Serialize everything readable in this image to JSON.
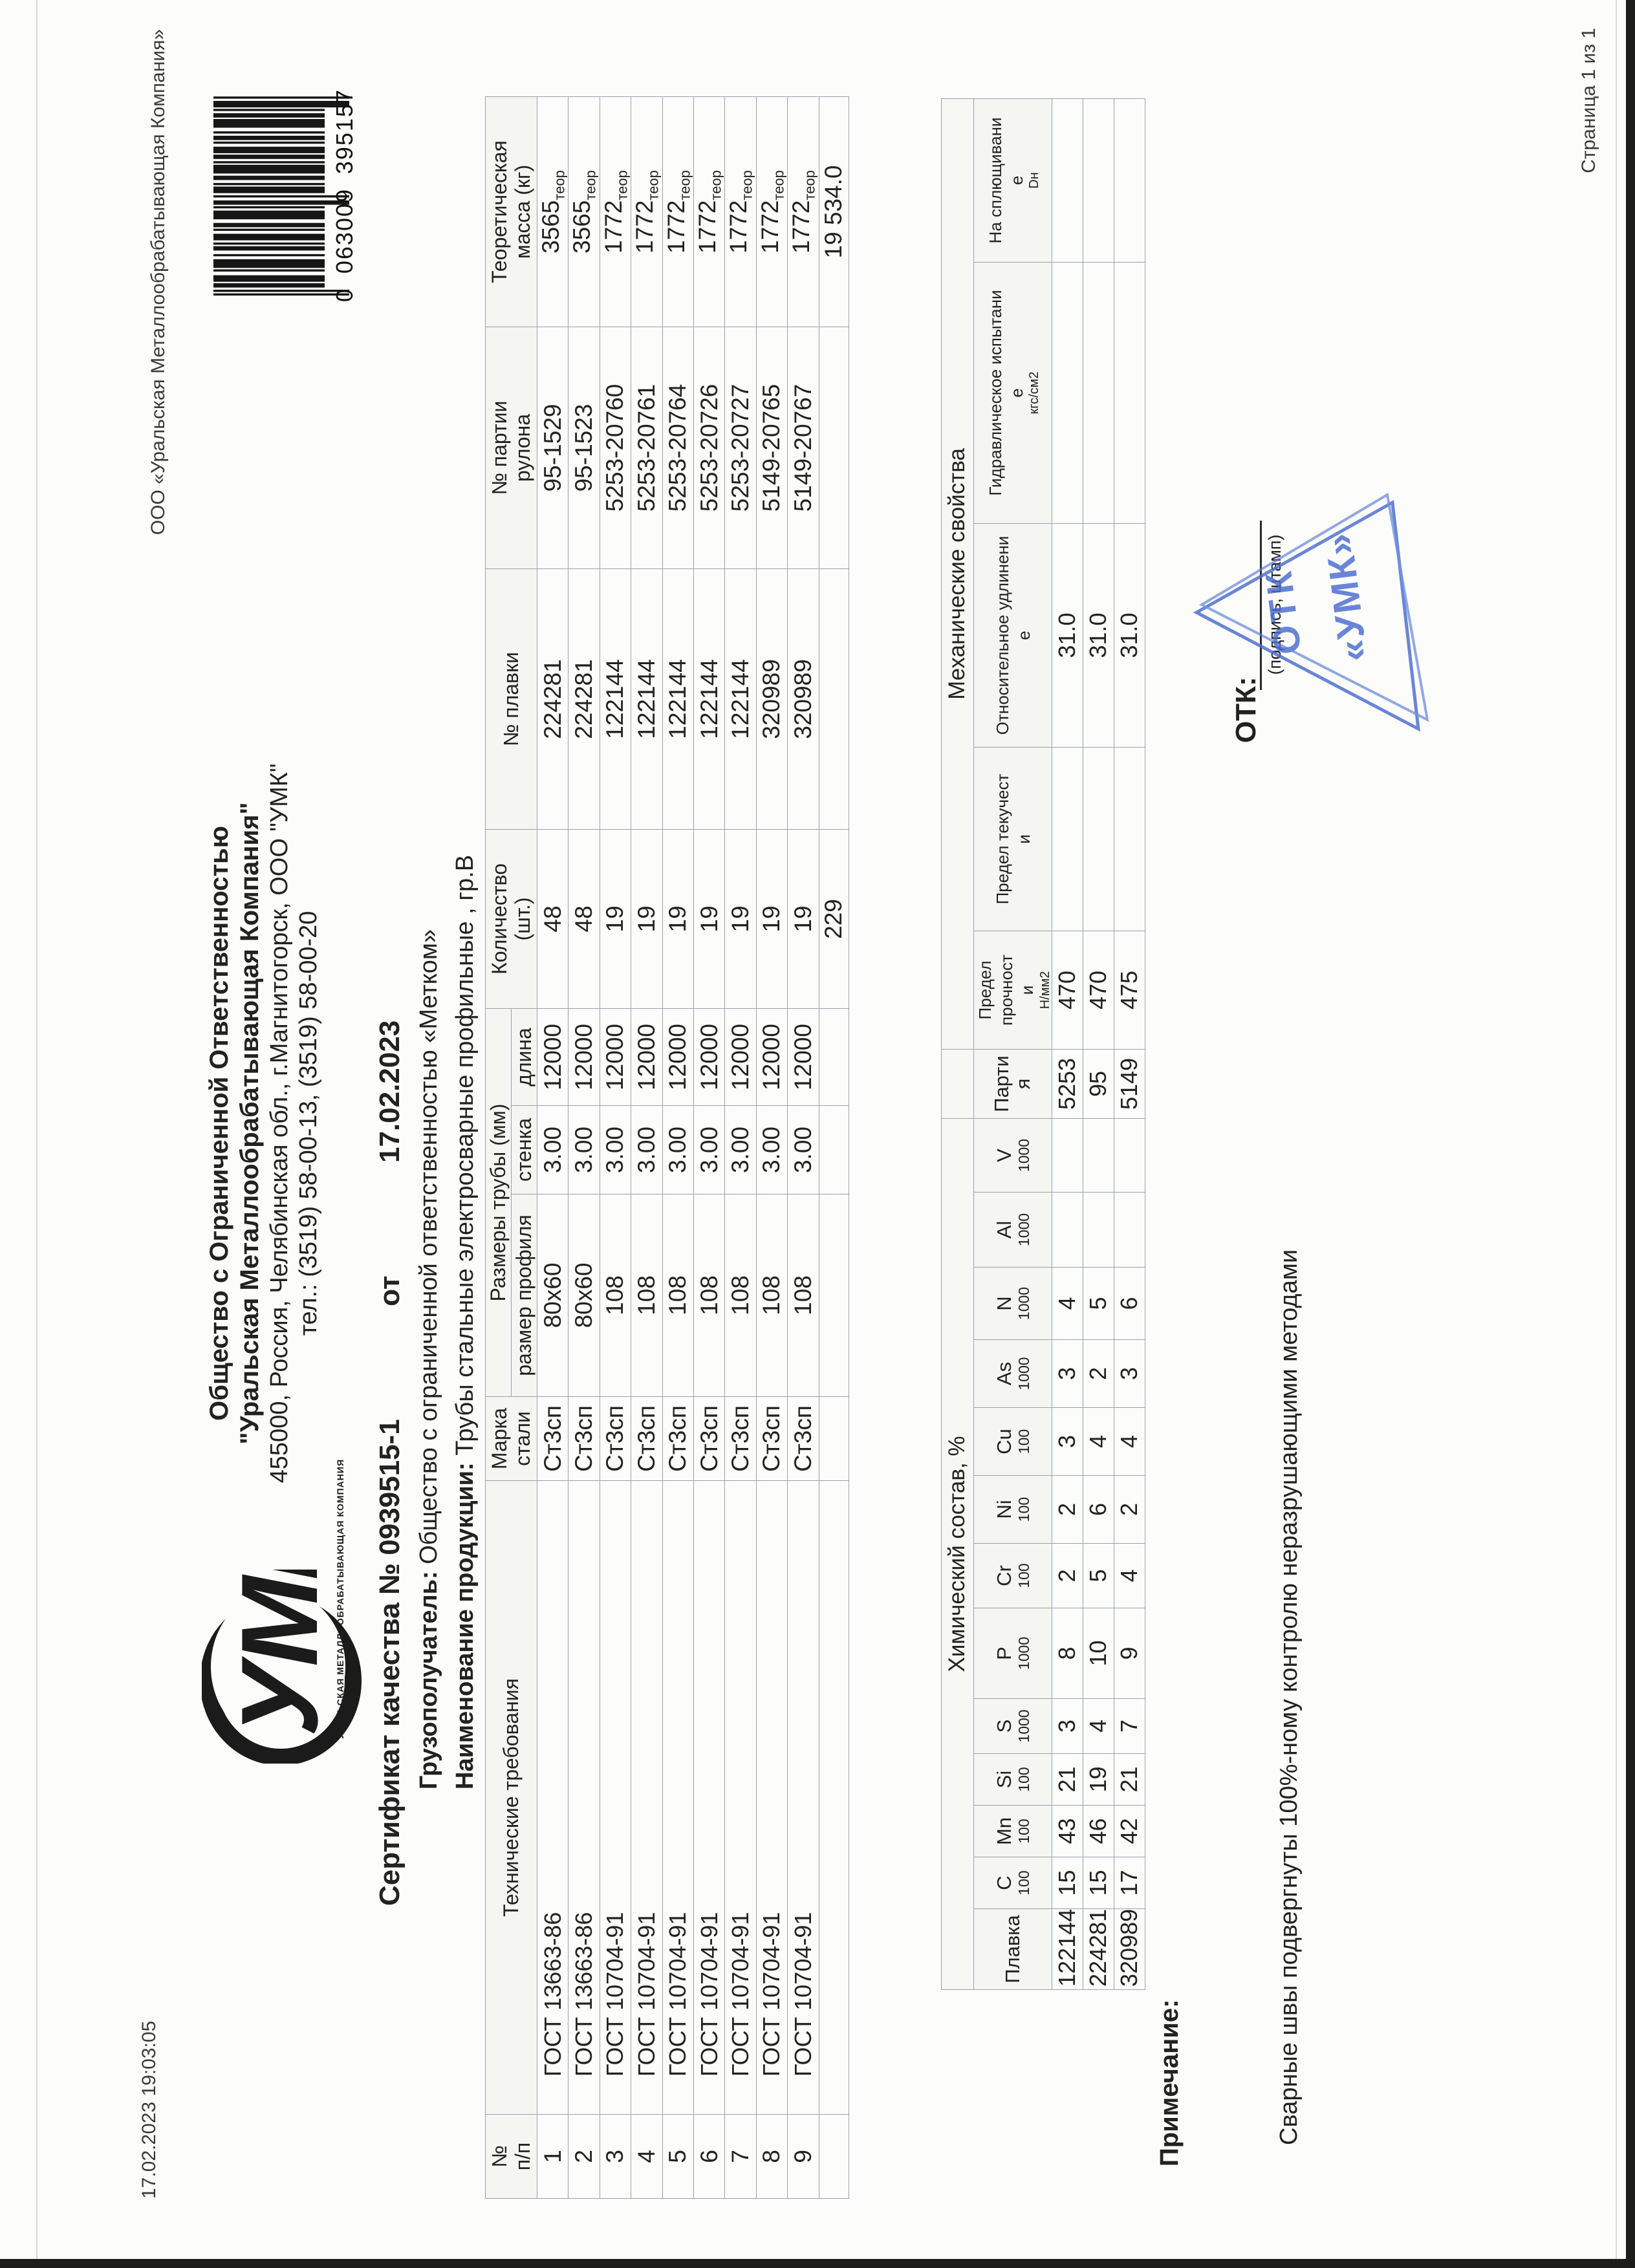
{
  "print_meta": {
    "header_left": "17.02.2023 19:03:05",
    "header_right": "ООО «Уральская Металлообрабатывающая Компания»",
    "footer_right": "Страница 1 из 1"
  },
  "logo": {
    "text": "УМК",
    "caption": "УРАЛЬСКАЯ МЕТАЛЛООБРАБАТЫВАЮЩАЯ КОМПАНИЯ"
  },
  "barcode": {
    "digit_prefix": "0",
    "digits_left": "063009",
    "digits_right": "395157"
  },
  "header": {
    "line1": "Общество с Ограниченной Ответственностью",
    "line2": "\"Уральская Металлообрабатывающая Компания\"",
    "line3": "455000, Россия, Челябинская обл., г.Магнитогорск, ООО \"УМК\"",
    "line4": "тел.: (3519) 58-00-13, (3519) 58-00-20",
    "cert_label": "Сертификат качества №",
    "cert_number": "0939515-1",
    "cert_ot": "от",
    "cert_date": "17.02.2023",
    "consignee_label": "Грузополучатель:",
    "consignee": "Общество с ограниченной ответственностью «Метком»",
    "product_label": "Наименование продукции:",
    "product": "Трубы стальные электросварные профильные , гр.В"
  },
  "main_table": {
    "col_npp": "№\nп/п",
    "col_req": "Технические требования",
    "col_steel": "Марка\nстали",
    "group_sizes": "Размеры трубы (мм)",
    "sub_profile": "размер профиля",
    "sub_wall": "стенка",
    "sub_length": "длина",
    "col_qty": "Количество\n(шт.)",
    "col_melt": "№ плавки",
    "col_batch": "№ партии\nрулона",
    "col_mass": "Теоретическая\nмасса (кг)",
    "mass_suffix": "теор",
    "rows": [
      [
        "1",
        "ГОСТ 13663-86",
        "Ст3сп",
        "80х60",
        "3.00",
        "12000",
        "48",
        "224281",
        "95-1529",
        "3565"
      ],
      [
        "2",
        "ГОСТ 13663-86",
        "Ст3сп",
        "80х60",
        "3.00",
        "12000",
        "48",
        "224281",
        "95-1523",
        "3565"
      ],
      [
        "3",
        "ГОСТ 10704-91",
        "Ст3сп",
        "108",
        "3.00",
        "12000",
        "19",
        "122144",
        "5253-20760",
        "1772"
      ],
      [
        "4",
        "ГОСТ 10704-91",
        "Ст3сп",
        "108",
        "3.00",
        "12000",
        "19",
        "122144",
        "5253-20761",
        "1772"
      ],
      [
        "5",
        "ГОСТ 10704-91",
        "Ст3сп",
        "108",
        "3.00",
        "12000",
        "19",
        "122144",
        "5253-20764",
        "1772"
      ],
      [
        "6",
        "ГОСТ 10704-91",
        "Ст3сп",
        "108",
        "3.00",
        "12000",
        "19",
        "122144",
        "5253-20726",
        "1772"
      ],
      [
        "7",
        "ГОСТ 10704-91",
        "Ст3сп",
        "108",
        "3.00",
        "12000",
        "19",
        "122144",
        "5253-20727",
        "1772"
      ],
      [
        "8",
        "ГОСТ 10704-91",
        "Ст3сп",
        "108",
        "3.00",
        "12000",
        "19",
        "320989",
        "5149-20765",
        "1772"
      ],
      [
        "9",
        "ГОСТ 10704-91",
        "Ст3сп",
        "108",
        "3.00",
        "12000",
        "19",
        "320989",
        "5149-20767",
        "1772"
      ]
    ],
    "total_qty": "229",
    "total_mass": "19 534.0"
  },
  "chem_table": {
    "caption_left": "Химический состав, %",
    "caption_right": "Механические свойства",
    "col_melt": "Плавка",
    "elements": [
      {
        "s": "C",
        "d": "100"
      },
      {
        "s": "Mn",
        "d": "100"
      },
      {
        "s": "Si",
        "d": "100"
      },
      {
        "s": "S",
        "d": "1000"
      },
      {
        "s": "P",
        "d": "1000"
      },
      {
        "s": "Cr",
        "d": "100"
      },
      {
        "s": "Ni",
        "d": "100"
      },
      {
        "s": "Cu",
        "d": "100"
      },
      {
        "s": "As",
        "d": "1000"
      },
      {
        "s": "N",
        "d": "1000"
      },
      {
        "s": "Al",
        "d": "1000"
      },
      {
        "s": "V",
        "d": "1000"
      }
    ],
    "col_party": "Парти\nя",
    "mech_headers": [
      {
        "lines": "Предел прочност\nи",
        "small": "Н/мм2"
      },
      {
        "lines": "Предел текучест\nи",
        "small": ""
      },
      {
        "lines": "Относительное удлинени\nе",
        "small": ""
      },
      {
        "lines": "Гидравлическое испытани\nе",
        "small": "кгс/см2"
      },
      {
        "lines": "На сплющивани\nе",
        "small": "Dн"
      }
    ],
    "rows": [
      {
        "melt": "122144",
        "values": [
          "15",
          "43",
          "21",
          "3",
          "8",
          "2",
          "2",
          "3",
          "3",
          "4",
          "",
          ""
        ],
        "party": "5253",
        "strength": "470",
        "yield": "",
        "elong": "31.0",
        "hydro": "",
        "flatten": ""
      },
      {
        "melt": "224281",
        "values": [
          "15",
          "46",
          "19",
          "4",
          "10",
          "5",
          "6",
          "4",
          "2",
          "5",
          "",
          ""
        ],
        "party": "95",
        "strength": "470",
        "yield": "",
        "elong": "31.0",
        "hydro": "",
        "flatten": ""
      },
      {
        "melt": "320989",
        "values": [
          "17",
          "42",
          "21",
          "7",
          "9",
          "4",
          "2",
          "4",
          "3",
          "6",
          "",
          ""
        ],
        "party": "5149",
        "strength": "475",
        "yield": "",
        "elong": "31.0",
        "hydro": "",
        "flatten": ""
      }
    ]
  },
  "note": {
    "label": "Примечание:",
    "text": "Сварные швы подвергнуты 100%-ному контролю неразрушающими методами"
  },
  "otk": {
    "label": "ОТК:",
    "sign_hint": "(подпись, штамп)",
    "stamp_line1": "ОТК",
    "stamp_line2": "«УМК»"
  },
  "colors": {
    "stamp_blue": "#4a6cd0",
    "table_border": "#99a1af",
    "text": "#222222"
  }
}
